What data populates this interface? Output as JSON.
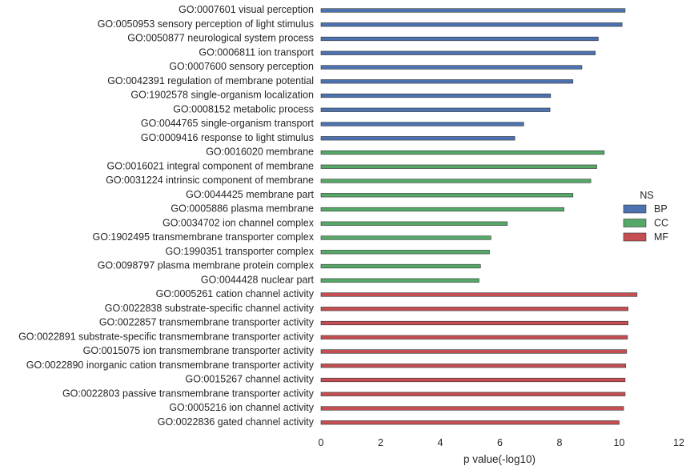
{
  "chart_data": {
    "type": "bar",
    "orientation": "horizontal",
    "xlabel": "p value(-log10)",
    "ylabel": "",
    "xlim": [
      0,
      12
    ],
    "xticks": [
      0,
      2,
      4,
      6,
      8,
      10,
      12
    ],
    "grid": false,
    "legend": {
      "title": "NS",
      "placement": "right",
      "entries": [
        {
          "name": "BP",
          "color": "#4C72B0"
        },
        {
          "name": "CC",
          "color": "#55A868"
        },
        {
          "name": "MF",
          "color": "#C44E52"
        }
      ]
    },
    "categories": [
      {
        "label": "GO:0007601 visual perception",
        "group": "BP",
        "value": 10.2
      },
      {
        "label": "GO:0050953 sensory perception of light stimulus",
        "group": "BP",
        "value": 10.1
      },
      {
        "label": "GO:0050877 neurological system process",
        "group": "BP",
        "value": 9.3
      },
      {
        "label": "GO:0006811 ion transport",
        "group": "BP",
        "value": 9.2
      },
      {
        "label": "GO:0007600 sensory perception",
        "group": "BP",
        "value": 8.75
      },
      {
        "label": "GO:0042391 regulation of membrane potential",
        "group": "BP",
        "value": 8.45
      },
      {
        "label": "GO:1902578 single-organism localization",
        "group": "BP",
        "value": 7.7
      },
      {
        "label": "GO:0008152 metabolic process",
        "group": "BP",
        "value": 7.68
      },
      {
        "label": "GO:0044765 single-organism transport",
        "group": "BP",
        "value": 6.8
      },
      {
        "label": "GO:0009416 response to light stimulus",
        "group": "BP",
        "value": 6.5
      },
      {
        "label": "GO:0016020 membrane",
        "group": "CC",
        "value": 9.5
      },
      {
        "label": "GO:0016021 integral component of membrane",
        "group": "CC",
        "value": 9.25
      },
      {
        "label": "GO:0031224 intrinsic component of membrane",
        "group": "CC",
        "value": 9.05
      },
      {
        "label": "GO:0044425 membrane part",
        "group": "CC",
        "value": 8.45
      },
      {
        "label": "GO:0005886 plasma membrane",
        "group": "CC",
        "value": 8.15
      },
      {
        "label": "GO:0034702 ion channel complex",
        "group": "CC",
        "value": 6.25
      },
      {
        "label": "GO:1902495 transmembrane transporter complex",
        "group": "CC",
        "value": 5.7
      },
      {
        "label": "GO:1990351 transporter complex",
        "group": "CC",
        "value": 5.65
      },
      {
        "label": "GO:0098797 plasma membrane protein complex",
        "group": "CC",
        "value": 5.35
      },
      {
        "label": "GO:0044428 nuclear part",
        "group": "CC",
        "value": 5.3
      },
      {
        "label": "GO:0005261 cation channel activity",
        "group": "MF",
        "value": 10.6
      },
      {
        "label": "GO:0022838 substrate-specific channel activity",
        "group": "MF",
        "value": 10.3
      },
      {
        "label": "GO:0022857 transmembrane transporter activity",
        "group": "MF",
        "value": 10.3
      },
      {
        "label": "GO:0022891 substrate-specific transmembrane transporter activity",
        "group": "MF",
        "value": 10.28
      },
      {
        "label": "GO:0015075 ion transmembrane transporter activity",
        "group": "MF",
        "value": 10.25
      },
      {
        "label": "GO:0022890 inorganic cation transmembrane transporter activity",
        "group": "MF",
        "value": 10.22
      },
      {
        "label": "GO:0015267 channel activity",
        "group": "MF",
        "value": 10.2
      },
      {
        "label": "GO:0022803 passive transmembrane transporter activity",
        "group": "MF",
        "value": 10.2
      },
      {
        "label": "GO:0005216 ion channel activity",
        "group": "MF",
        "value": 10.15
      },
      {
        "label": "GO:0022836 gated channel activity",
        "group": "MF",
        "value": 10.0
      }
    ]
  }
}
